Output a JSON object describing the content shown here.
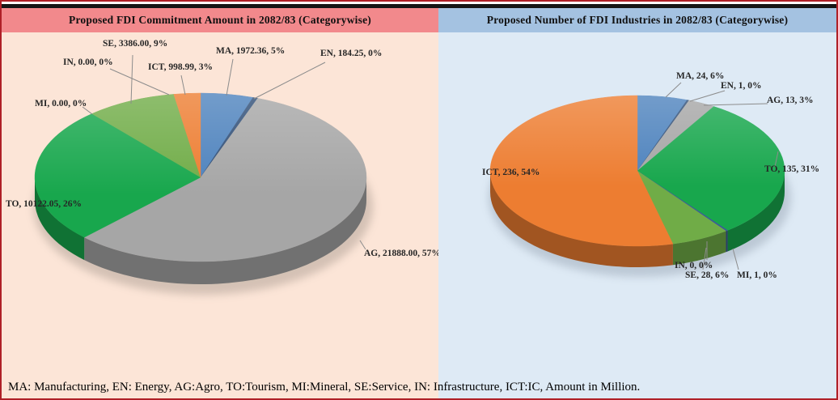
{
  "footer": {
    "text": "MA: Manufacturing, EN: Energy,  AG:Agro,  TO:Tourism, MI:Mineral,  SE:Service,  IN: Infrastructure,  ICT:IC, Amount in Million."
  },
  "palette": {
    "border": "#AF2027",
    "top_bar": "#161616",
    "left_header_bg": "#F2898C",
    "left_panel_bg": "#FCE5D7",
    "right_header_bg": "#A4C2E1",
    "right_panel_bg": "#DEEAF5",
    "leader_line": "#8C8C8C"
  },
  "chart_data": [
    {
      "type": "pie",
      "title": "Proposed FDI Commitment Amount in 2082/83 (Categorywise)",
      "legend_position": "none",
      "value_unit": "Amount in Million",
      "categories": [
        "MA",
        "EN",
        "AG",
        "TO",
        "MI",
        "SE",
        "IN",
        "ICT"
      ],
      "values": [
        1972.36,
        184.25,
        21888.0,
        10122.05,
        0.0,
        3386.0,
        0.0,
        998.99
      ],
      "slices": [
        {
          "code": "MA",
          "value": 1972.36,
          "pct": 5,
          "label": "MA, 1972.36, 5%",
          "color": "#4D82BD"
        },
        {
          "code": "EN",
          "value": 184.25,
          "pct": 0,
          "label": "EN, 184.25, 0%",
          "color": "#2E4D76"
        },
        {
          "code": "AG",
          "value": 21888.0,
          "pct": 57,
          "label": "AG, 21888.00, 57%",
          "color": "#A6A6A6"
        },
        {
          "code": "TO",
          "value": 10122.05,
          "pct": 26,
          "label": "TO, 10122.05, 26%",
          "color": "#18A74D"
        },
        {
          "code": "MI",
          "value": 0.0,
          "pct": 0,
          "label": "MI, 0.00, 0%",
          "color": "#3C5A99"
        },
        {
          "code": "SE",
          "value": 3386.0,
          "pct": 9,
          "label": "SE, 3386.00, 9%",
          "color": "#70AC47"
        },
        {
          "code": "IN",
          "value": 0.0,
          "pct": 0,
          "label": "IN, 0.00, 0%",
          "color": "#6B4E9B"
        },
        {
          "code": "ICT",
          "value": 998.99,
          "pct": 3,
          "label": "ICT, 998.99, 3%",
          "color": "#ED7D31"
        }
      ]
    },
    {
      "type": "pie",
      "title": "Proposed Number of FDI Industries in 2082/83  (Categorywise)",
      "legend_position": "none",
      "value_unit": "Number of industries",
      "categories": [
        "MA",
        "EN",
        "AG",
        "TO",
        "MI",
        "SE",
        "IN",
        "ICT"
      ],
      "values": [
        24,
        1,
        13,
        135,
        1,
        28,
        0,
        236
      ],
      "slices": [
        {
          "code": "MA",
          "value": 24,
          "pct": 6,
          "label": "MA, 24, 6%",
          "color": "#4D82BD"
        },
        {
          "code": "EN",
          "value": 1,
          "pct": 0,
          "label": "EN, 1, 0%",
          "color": "#2E4D76"
        },
        {
          "code": "AG",
          "value": 13,
          "pct": 3,
          "label": "AG, 13, 3%",
          "color": "#A6A6A6"
        },
        {
          "code": "TO",
          "value": 135,
          "pct": 31,
          "label": "TO, 135, 31%",
          "color": "#18A74D"
        },
        {
          "code": "MI",
          "value": 1,
          "pct": 0,
          "label": "MI, 1, 0%",
          "color": "#3C5A99"
        },
        {
          "code": "SE",
          "value": 28,
          "pct": 6,
          "label": "SE, 28, 6%",
          "color": "#70AC47"
        },
        {
          "code": "IN",
          "value": 0,
          "pct": 0,
          "label": "IN, 0, 0%",
          "color": "#6B4E9B"
        },
        {
          "code": "ICT",
          "value": 236,
          "pct": 54,
          "label": "ICT, 236, 54%",
          "color": "#ED7D31"
        }
      ]
    }
  ]
}
